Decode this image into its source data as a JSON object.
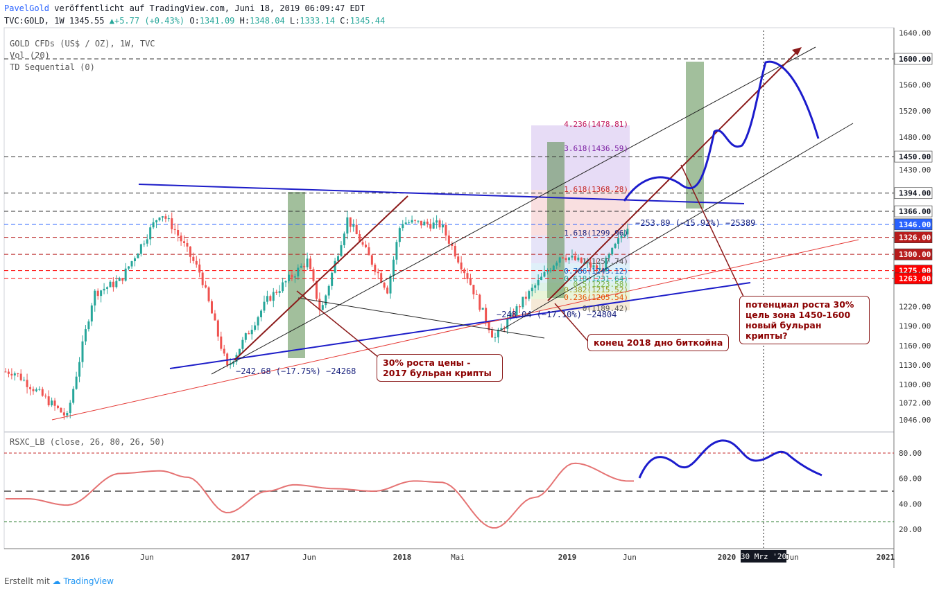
{
  "header": {
    "author": "PavelGold",
    "published": "veröffentlicht auf TradingView.com, Juni 18, 2019 06:09:47 EDT",
    "symbol": "TVC:GOLD, 1W",
    "last": "1345.55",
    "change": "+5.77 (+0.43%)",
    "open_label": "O:",
    "open": "1341.09",
    "high_label": "H:",
    "high": "1348.04",
    "low_label": "L:",
    "low": "1333.14",
    "close_label": "C:",
    "close": "1345.44"
  },
  "legend": {
    "line1": "GOLD CFDs (US$ / OZ), 1W, TVC",
    "line2": "Vol (20)",
    "line3": "TD Sequential (0)"
  },
  "price_axis": {
    "ticks": [
      "1640.00",
      "1560.00",
      "1520.00",
      "1480.00",
      "1430.00",
      "1220.00",
      "1190.00",
      "1160.00",
      "1130.00",
      "1100.00",
      "1072.00",
      "1046.00"
    ],
    "badges": [
      {
        "label": "1600.00",
        "bg": "#ffffff",
        "fg": "#131722"
      },
      {
        "label": "1450.00",
        "bg": "#ffffff",
        "fg": "#131722"
      },
      {
        "label": "1394.00",
        "bg": "#ffffff",
        "fg": "#131722"
      },
      {
        "label": "1366.00",
        "bg": "#ffffff",
        "fg": "#131722"
      },
      {
        "label": "1346.00",
        "bg": "#2962ff",
        "fg": "#ffffff"
      },
      {
        "label": "1326.00",
        "bg": "#b71c1c",
        "fg": "#ffffff"
      },
      {
        "label": "1300.00",
        "bg": "#b71c1c",
        "fg": "#ffffff"
      },
      {
        "label": "1275.00",
        "bg": "#ff0000",
        "fg": "#ffffff"
      },
      {
        "label": "1263.00",
        "bg": "#ff0000",
        "fg": "#ffffff"
      }
    ]
  },
  "time_axis": {
    "ticks": [
      "2016",
      "Jun",
      "2017",
      "Jun",
      "2018",
      "Mai",
      "2019",
      "Jun",
      "2020",
      "Jun",
      "2021"
    ],
    "cursor_label": "30 Mrz '20"
  },
  "fib_labels": [
    "4.236(1478.81)",
    "3.618(1436.59)",
    "1.618(1368.28)",
    "1.618(1299.96)",
    "1(1257.74)",
    "0.786(1243.12)",
    "0.618(1231.64)",
    "0.5(1223.58)",
    "0.382(1215.52)",
    "0.236(1205.54)",
    "0(1189.42)"
  ],
  "measure_labels": {
    "m1": "−242.68 (−17.75%) −24268",
    "m2": "−248.04 (−17.10%) −24804",
    "m3": "−253.89 (−15.92%) −25389"
  },
  "callouts": {
    "c1": "30% роста цены -\n2017 бульран крипты",
    "c2": "конец 2018 дно биткойна",
    "c3": "потенциал роста 30%\nцель зона 1450-1600\nновый бульран крипты?"
  },
  "oscillator": {
    "title": "RSXC_LB (close, 26, 80, 26, 50)",
    "ticks": [
      "80.00",
      "60.00",
      "40.00",
      "20.00"
    ]
  },
  "footer": {
    "created_with": "Erstellt mit",
    "brand": "TradingView"
  },
  "chart_data": {
    "type": "line",
    "title": "GOLD CFDs (US$ / OZ), 1W, TVC",
    "series": [
      {
        "name": "GOLD CFDs (US$ / OZ), 1W, TVC",
        "x": [
          "2015-08",
          "2015-12",
          "2016-02",
          "2016-04",
          "2016-07",
          "2016-08",
          "2016-10",
          "2016-12",
          "2017-03",
          "2017-06",
          "2017-07",
          "2017-09",
          "2017-12",
          "2018-01",
          "2018-04",
          "2018-06",
          "2018-08",
          "2018-10",
          "2019-01",
          "2019-04",
          "2019-06"
        ],
        "values": [
          1120,
          1050,
          1240,
          1260,
          1365,
          1340,
          1270,
          1125,
          1230,
          1290,
          1210,
          1355,
          1245,
          1350,
          1345,
          1265,
          1170,
          1225,
          1300,
          1275,
          1345
        ]
      },
      {
        "name": "RSXC_LB (close, 26, 80, 26, 50)",
        "x": [
          "2015-09",
          "2015-12",
          "2016-04",
          "2016-07",
          "2016-09",
          "2016-12",
          "2017-03",
          "2017-05",
          "2017-08",
          "2017-11",
          "2018-02",
          "2018-04",
          "2018-08",
          "2018-11",
          "2019-02",
          "2019-06"
        ],
        "values": [
          44,
          39,
          64,
          66,
          61,
          33,
          50,
          55,
          52,
          50,
          58,
          57,
          21,
          45,
          72,
          58
        ]
      }
    ],
    "ylim": [
      1030,
      1650
    ],
    "osc_ylim": [
      10,
      95
    ],
    "levels": [
      1600,
      1450,
      1394,
      1366,
      1346,
      1326,
      1300,
      1275,
      1263
    ],
    "osc_levels": [
      80,
      50,
      26
    ],
    "grid": false
  }
}
